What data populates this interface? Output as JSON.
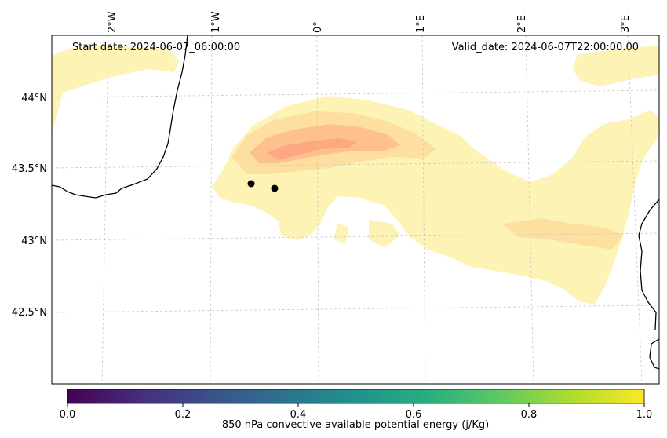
{
  "map": {
    "start_label": "Start date: 2024-06-07_06:00:00",
    "valid_label": "Valid_date: 2024-06-07T22:00:00.00",
    "lon_labels": [
      "2°W",
      "1°W",
      "0°",
      "1°E",
      "2°E",
      "3°E"
    ],
    "lat_labels": [
      "44°N",
      "43.5°N",
      "43°N",
      "42.5°N"
    ],
    "markers": [
      {
        "name": "marker-1"
      },
      {
        "name": "marker-2"
      }
    ],
    "field_colors": {
      "low": "#fdf3b5",
      "mid": "#fde0a0",
      "high": "#fdc08e",
      "peak": "#fca982"
    }
  },
  "colorbar": {
    "ticks": [
      "0.0",
      "0.2",
      "0.4",
      "0.6",
      "0.8",
      "1.0"
    ],
    "label": "850 hPa convective available potential energy (j/Kg)",
    "stops": [
      "#440154",
      "#3b528b",
      "#21918c",
      "#5ec962",
      "#fde725"
    ]
  }
}
